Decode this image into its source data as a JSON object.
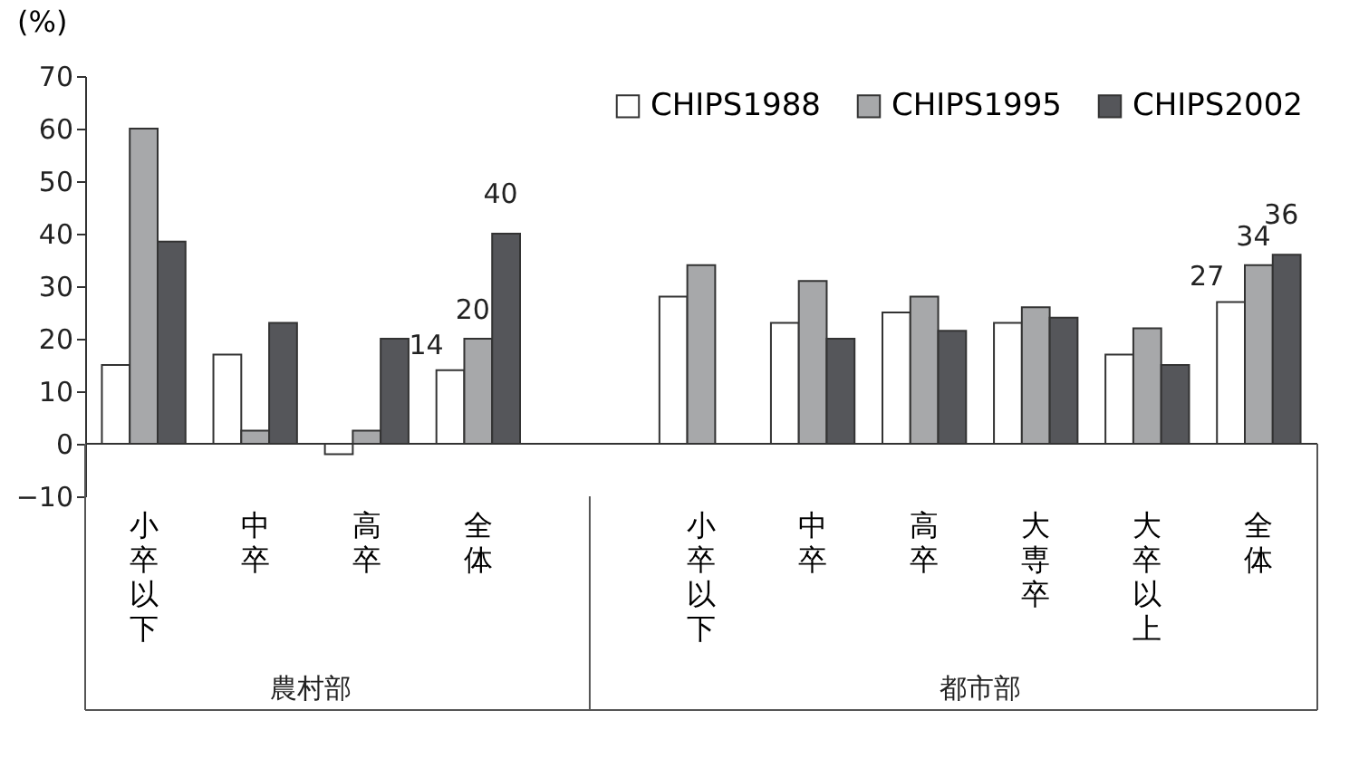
{
  "chart_data": {
    "type": "bar",
    "ylabel": "(%)",
    "categories": [
      "小卒以下",
      "中卒",
      "高卒",
      "全体",
      null,
      "小卒以下",
      "中卒",
      "高卒",
      "大専卒",
      "大卒以上",
      "全体"
    ],
    "series": [
      {
        "name": "CHIPS1988",
        "color": "#ffffff",
        "values": [
          15,
          17,
          -2,
          14,
          null,
          28,
          23,
          25,
          23,
          17,
          27
        ],
        "value_labels": [
          null,
          null,
          null,
          "14",
          null,
          null,
          null,
          null,
          null,
          null,
          "27"
        ]
      },
      {
        "name": "CHIPS1995",
        "color": "#a7a8aa",
        "values": [
          60,
          2.5,
          2.5,
          20,
          null,
          34,
          31,
          28,
          26,
          22,
          34
        ],
        "value_labels": [
          null,
          null,
          null,
          "20",
          null,
          null,
          null,
          null,
          null,
          null,
          "34"
        ]
      },
      {
        "name": "CHIPS2002",
        "color": "#55565a",
        "values": [
          38.5,
          23,
          20,
          40,
          null,
          null,
          20,
          21.5,
          24,
          15,
          36
        ],
        "value_labels": [
          null,
          null,
          null,
          "40",
          null,
          null,
          null,
          null,
          null,
          null,
          "36"
        ]
      }
    ],
    "annotations": [
      "農村部",
      "都市部"
    ],
    "ylim": [
      -10,
      70
    ],
    "yticks": [
      -10,
      0,
      10,
      20,
      30,
      40,
      50,
      60,
      70
    ],
    "grid": false,
    "legend": "top right"
  }
}
